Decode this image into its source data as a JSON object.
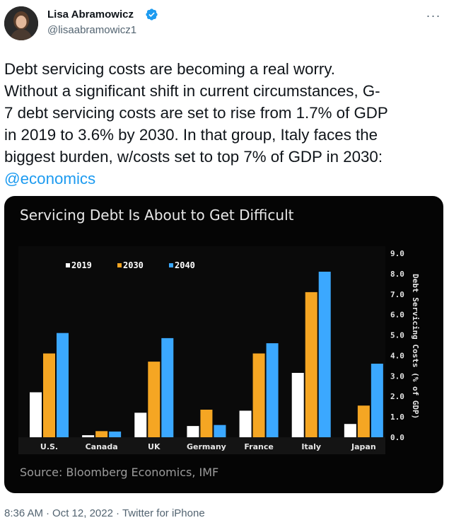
{
  "author": {
    "display_name": "Lisa Abramowicz",
    "handle": "@lisaabramowicz1",
    "verified_icon": "verified-badge-icon"
  },
  "tweet": {
    "text_lines": [
      "Debt servicing costs are becoming a real worry.",
      "Without a significant shift in current circumstances, G-",
      "7 debt servicing costs are set to rise from 1.7% of GDP",
      "in 2019 to 3.6% by 2030. In that group, Italy faces the",
      "biggest burden, w/costs set to top 7% of GDP in 2030:"
    ],
    "mention": "@economics"
  },
  "meta": {
    "time": "8:36 AM",
    "date": "Oct 12, 2022",
    "client": "Twitter for iPhone"
  },
  "colors": {
    "accent": "#1d9bf0",
    "series_2019": "#ffffff",
    "series_2030": "#f5a623",
    "series_2040": "#3ba8ff"
  },
  "chart_data": {
    "type": "bar",
    "title": "Servicing Debt Is About to Get Difficult",
    "source": "Source: Bloomberg Economics, IMF",
    "ylabel": "Debt Servicing Costs (% of GDP)",
    "ylim": [
      0,
      9
    ],
    "yticks": [
      "0.0",
      "1.0",
      "2.0",
      "3.0",
      "4.0",
      "5.0",
      "6.0",
      "7.0",
      "8.0",
      "9.0"
    ],
    "categories": [
      "U.S.",
      "Canada",
      "UK",
      "Germany",
      "France",
      "Italy",
      "Japan"
    ],
    "series": [
      {
        "name": "2019",
        "values": [
          2.2,
          0.1,
          1.2,
          0.55,
          1.3,
          3.15,
          0.65
        ]
      },
      {
        "name": "2030",
        "values": [
          4.1,
          0.3,
          3.7,
          1.35,
          4.1,
          7.1,
          1.55
        ]
      },
      {
        "name": "2040",
        "values": [
          5.1,
          0.28,
          4.85,
          0.6,
          4.6,
          8.1,
          3.6
        ]
      }
    ],
    "legend_position": "top-left",
    "grid": false
  }
}
